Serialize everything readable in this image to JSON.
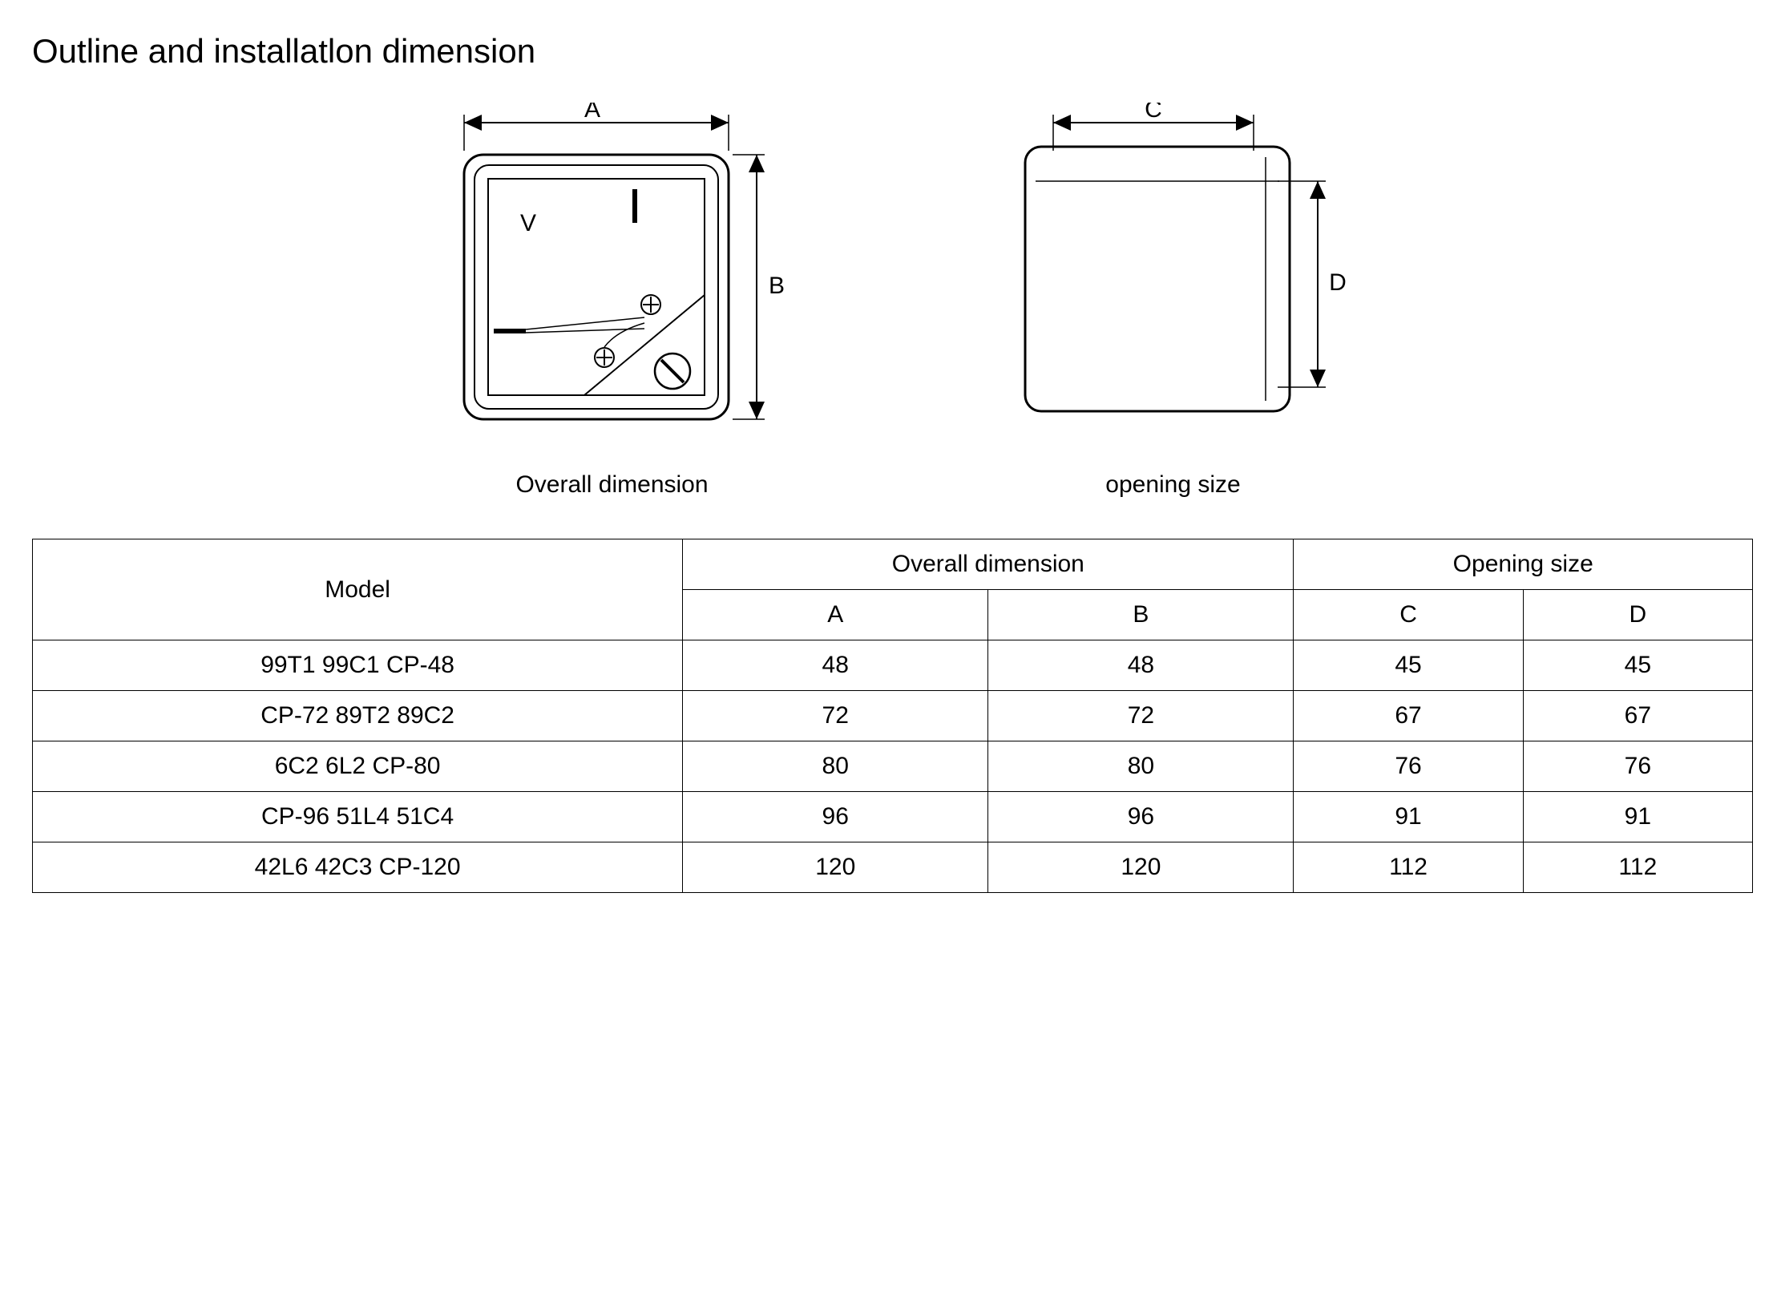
{
  "title": "Outline and installatlon dimension",
  "diagrams": {
    "left": {
      "dim_a_label": "A",
      "dim_b_label": "B",
      "meter_v_label": "V",
      "caption": "Overall dimension"
    },
    "right": {
      "dim_c_label": "C",
      "dim_d_label": "D",
      "caption": "opening size"
    }
  },
  "table": {
    "header_model": "Model",
    "header_overall": "Overall dimension",
    "header_opening": "Opening size",
    "col_a": "A",
    "col_b": "B",
    "col_c": "C",
    "col_d": "D",
    "rows": [
      {
        "model": "99T1 99C1 CP-48",
        "a": "48",
        "b": "48",
        "c": "45",
        "d": "45"
      },
      {
        "model": "CP-72 89T2 89C2",
        "a": "72",
        "b": "72",
        "c": "67",
        "d": "67"
      },
      {
        "model": "6C2 6L2 CP-80",
        "a": "80",
        "b": "80",
        "c": "76",
        "d": "76"
      },
      {
        "model": "CP-96 51L4 51C4",
        "a": "96",
        "b": "96",
        "c": "91",
        "d": "91"
      },
      {
        "model": "42L6 42C3 CP-120",
        "a": "120",
        "b": "120",
        "c": "112",
        "d": "112"
      }
    ]
  },
  "style": {
    "stroke": "#000000",
    "bg": "#ffffff",
    "line_w_thin": 1.5,
    "line_w_thick": 3,
    "title_fontsize": 42,
    "caption_fontsize": 30,
    "table_fontsize": 30,
    "dim_label_fontsize": 30
  }
}
